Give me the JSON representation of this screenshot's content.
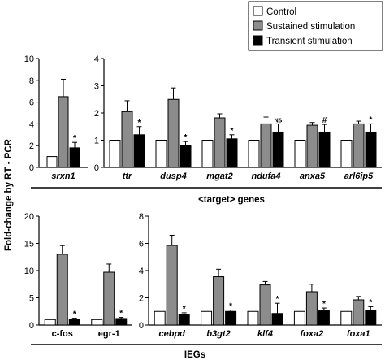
{
  "y_axis_label": "Fold-change by RT - PCR",
  "colors": {
    "control": "#ffffff",
    "sustained": "#8c8c8c",
    "transient": "#000000"
  },
  "chart_data": [
    {
      "type": "bar",
      "panel": "top-left",
      "categories": [
        "srxn1"
      ],
      "series": [
        {
          "name": "Control",
          "values": [
            1.0
          ]
        },
        {
          "name": "Sustained stimulation",
          "values": [
            6.5
          ]
        },
        {
          "name": "Transient stimulation",
          "values": [
            1.8
          ]
        }
      ],
      "error": {
        "Sustained stimulation": [
          1.6
        ],
        "Transient stimulation": [
          0.5
        ]
      },
      "annotations": [
        "*"
      ],
      "ylim": [
        0,
        10
      ],
      "yticks": [
        "0",
        "2",
        "4",
        "6",
        "8",
        "10"
      ],
      "italic_labels": true
    },
    {
      "type": "bar",
      "panel": "top-right",
      "group_label": "<target> genes",
      "categories": [
        "ttr",
        "dusp4",
        "mgat2",
        "ndufa4",
        "anxa5",
        "arl6ip5"
      ],
      "series": [
        {
          "name": "Control",
          "values": [
            1.0,
            1.0,
            1.0,
            1.0,
            1.0,
            1.0
          ]
        },
        {
          "name": "Sustained stimulation",
          "values": [
            2.05,
            2.5,
            1.82,
            1.6,
            1.55,
            1.6
          ]
        },
        {
          "name": "Transient stimulation",
          "values": [
            1.2,
            0.8,
            1.05,
            1.3,
            1.3,
            1.3
          ]
        }
      ],
      "error": {
        "Sustained stimulation": [
          0.4,
          0.42,
          0.15,
          0.25,
          0.1,
          0.1
        ],
        "Transient stimulation": [
          0.3,
          0.15,
          0.15,
          0.3,
          0.28,
          0.3
        ]
      },
      "annotations": [
        "*",
        "*",
        "*",
        "NS",
        "#",
        "*"
      ],
      "ylim": [
        0,
        4
      ],
      "yticks": [
        "0",
        "1",
        "2",
        "3",
        "4"
      ],
      "italic_labels": true
    },
    {
      "type": "bar",
      "panel": "bottom-left",
      "categories": [
        "c-fos",
        "egr-1"
      ],
      "series": [
        {
          "name": "Control",
          "values": [
            1.0,
            1.0
          ]
        },
        {
          "name": "Sustained stimulation",
          "values": [
            13.0,
            9.7
          ]
        },
        {
          "name": "Transient stimulation",
          "values": [
            1.1,
            1.2
          ]
        }
      ],
      "error": {
        "Sustained stimulation": [
          1.6,
          1.5
        ],
        "Transient stimulation": [
          0.15,
          0.2
        ]
      },
      "annotations": [
        "*",
        "*"
      ],
      "ylim": [
        0,
        20
      ],
      "yticks": [
        "0",
        "5",
        "10",
        "15",
        "20"
      ],
      "italic_labels": false
    },
    {
      "type": "bar",
      "panel": "bottom-right",
      "group_label": "IEGs",
      "categories": [
        "cebpd",
        "b3gt2",
        "klf4",
        "foxa2",
        "foxa1"
      ],
      "series": [
        {
          "name": "Control",
          "values": [
            1.0,
            1.0,
            1.0,
            1.0,
            1.0
          ]
        },
        {
          "name": "Sustained stimulation",
          "values": [
            5.85,
            3.55,
            2.95,
            2.45,
            1.85
          ]
        },
        {
          "name": "Transient stimulation",
          "values": [
            0.75,
            1.0,
            0.85,
            1.05,
            1.1
          ]
        }
      ],
      "error": {
        "Sustained stimulation": [
          0.75,
          0.55,
          0.25,
          0.55,
          0.25
        ],
        "Transient stimulation": [
          0.15,
          0.1,
          0.75,
          0.2,
          0.25
        ]
      },
      "annotations": [
        "*",
        "*",
        "*",
        "*",
        "*"
      ],
      "ylim": [
        0,
        8
      ],
      "yticks": [
        "0",
        "2",
        "4",
        "6",
        "8"
      ],
      "italic_labels": true
    }
  ],
  "legend": {
    "placement": "top-right",
    "entries": [
      "Control",
      "Sustained stimulation",
      "Transient stimulation"
    ]
  }
}
